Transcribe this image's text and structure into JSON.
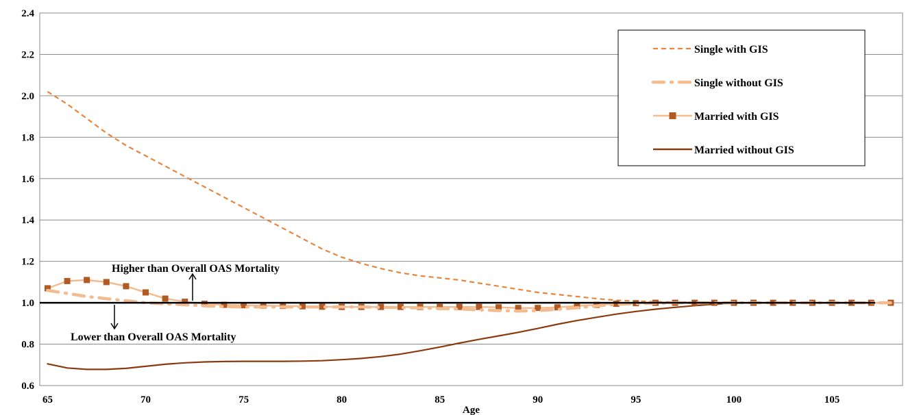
{
  "chart_data": {
    "type": "line",
    "title": "",
    "xlabel": "Age",
    "ylabel": "",
    "xlim": [
      65,
      108
    ],
    "ylim": [
      0.6,
      2.4
    ],
    "x_ticks": [
      "65",
      "70",
      "75",
      "80",
      "85",
      "90",
      "95",
      "100",
      "105"
    ],
    "y_ticks": [
      "0.6",
      "0.8",
      "1.0",
      "1.2",
      "1.4",
      "1.6",
      "1.8",
      "2.0",
      "2.2",
      "2.4"
    ],
    "grid": true,
    "legend_position": "top-right",
    "x": [
      65,
      66,
      67,
      68,
      69,
      70,
      71,
      72,
      73,
      74,
      75,
      76,
      77,
      78,
      79,
      80,
      81,
      82,
      83,
      84,
      85,
      86,
      87,
      88,
      89,
      90,
      91,
      92,
      93,
      94,
      95,
      96,
      97,
      98,
      99,
      100,
      101,
      102,
      103,
      104,
      105,
      106,
      107,
      108
    ],
    "series": [
      {
        "name": "Single with GIS",
        "color": "#e8853b",
        "style": "dashed",
        "values": [
          2.02,
          1.96,
          1.89,
          1.82,
          1.76,
          1.71,
          1.66,
          1.61,
          1.56,
          1.51,
          1.46,
          1.41,
          1.36,
          1.31,
          1.26,
          1.22,
          1.19,
          1.165,
          1.145,
          1.13,
          1.12,
          1.11,
          1.095,
          1.08,
          1.065,
          1.05,
          1.04,
          1.03,
          1.02,
          1.012,
          1.008,
          1.005,
          1.003,
          1.002,
          1.001,
          1.0,
          1.0,
          1.0,
          1.0,
          1.0,
          1.0,
          1.0,
          1.0,
          1.0
        ]
      },
      {
        "name": "Single without GIS",
        "color": "#f3bc90",
        "style": "dashdot",
        "values": [
          1.06,
          1.045,
          1.03,
          1.02,
          1.01,
          1.0,
          0.995,
          0.99,
          0.985,
          0.982,
          0.98,
          0.98,
          0.98,
          0.98,
          0.98,
          0.98,
          0.98,
          0.978,
          0.977,
          0.975,
          0.972,
          0.97,
          0.966,
          0.962,
          0.96,
          0.962,
          0.968,
          0.976,
          0.985,
          0.992,
          0.996,
          0.998,
          1.0,
          1.0,
          1.0,
          1.0,
          1.0,
          1.0,
          1.0,
          1.0,
          1.0,
          1.0,
          1.0,
          1.0
        ]
      },
      {
        "name": "Married with GIS",
        "color": "#f3bc90",
        "marker_color": "#b05a24",
        "style": "solid-square",
        "values": [
          1.07,
          1.105,
          1.11,
          1.1,
          1.08,
          1.05,
          1.02,
          1.005,
          0.995,
          0.99,
          0.988,
          0.986,
          0.985,
          0.983,
          0.981,
          0.98,
          0.98,
          0.98,
          0.98,
          0.98,
          0.98,
          0.98,
          0.98,
          0.978,
          0.975,
          0.975,
          0.978,
          0.985,
          0.99,
          0.995,
          0.998,
          1.0,
          1.0,
          1.0,
          1.0,
          1.0,
          1.0,
          1.0,
          1.0,
          1.0,
          1.0,
          1.0,
          1.0,
          1.0
        ]
      },
      {
        "name": "Married without GIS",
        "color": "#8b3a0f",
        "style": "solid",
        "values": [
          0.705,
          0.685,
          0.678,
          0.678,
          0.683,
          0.693,
          0.703,
          0.71,
          0.714,
          0.716,
          0.717,
          0.717,
          0.717,
          0.718,
          0.72,
          0.725,
          0.731,
          0.74,
          0.752,
          0.768,
          0.786,
          0.805,
          0.823,
          0.84,
          0.857,
          0.876,
          0.896,
          0.914,
          0.93,
          0.945,
          0.958,
          0.969,
          0.978,
          0.986,
          0.993,
          0.998,
          1.0,
          1.0,
          1.0,
          1.0,
          1.0,
          1.0,
          1.0,
          1.0
        ]
      }
    ],
    "reference_line": {
      "y": 1.0,
      "color": "#000000"
    },
    "annotations": {
      "higher": "Higher than Overall OAS Mortality",
      "lower": "Lower than Overall OAS Mortality"
    }
  }
}
